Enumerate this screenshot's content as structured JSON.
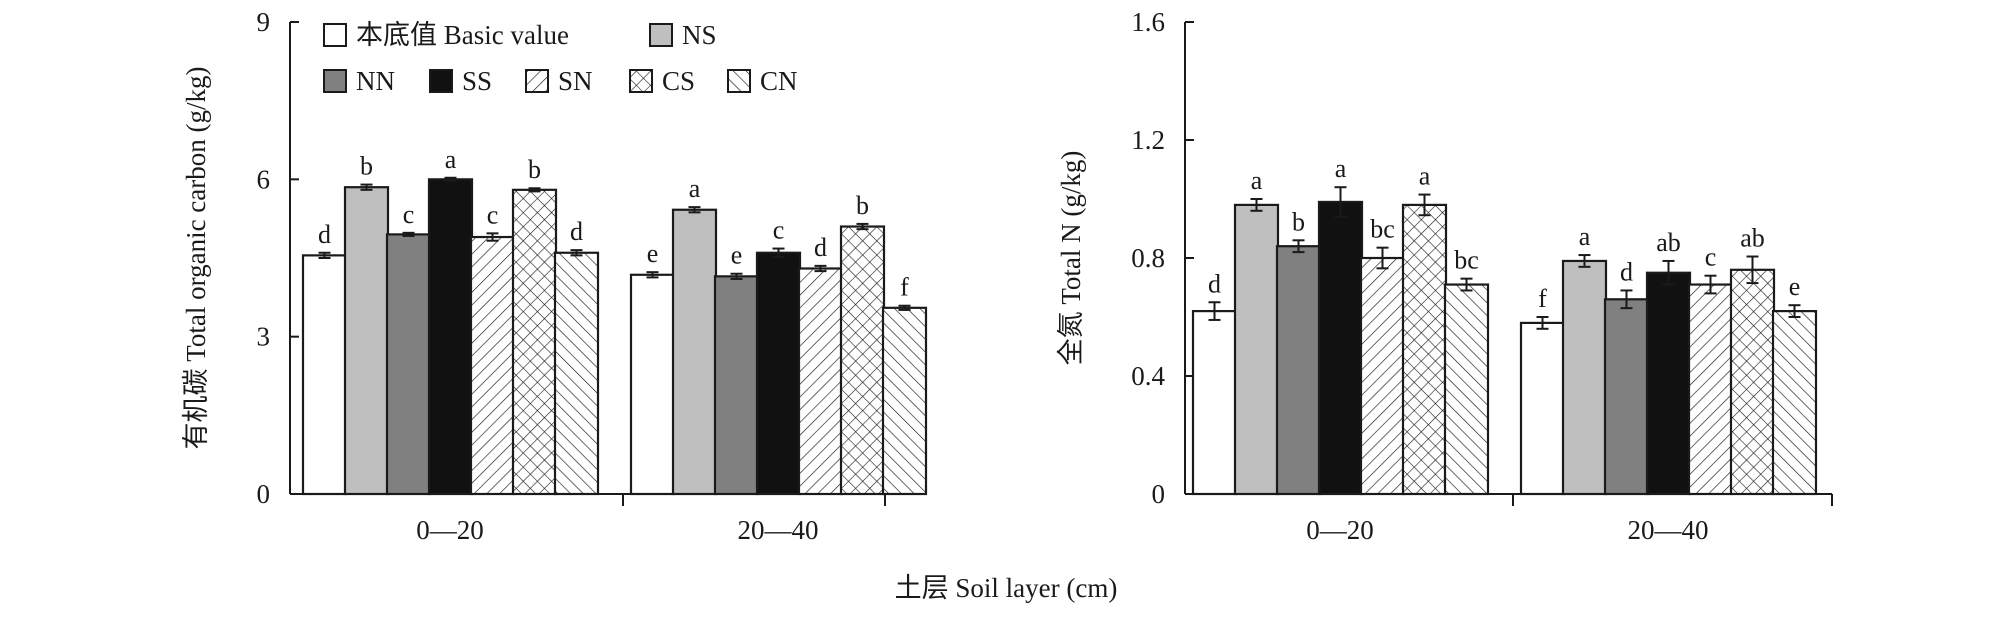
{
  "figure": {
    "xlabel": "土层 Soil layer (cm)"
  },
  "colors": {
    "frame": "#1a1a1a",
    "basic": "#ffffff",
    "NS": "#bfbfbf",
    "NN": "#808080",
    "SS": "#111111"
  },
  "legend": {
    "items": [
      {
        "key": "basic",
        "label": "本底值 Basic value",
        "fill": "white"
      },
      {
        "key": "NS",
        "label": "NS",
        "fill": "lightgray"
      },
      {
        "key": "NN",
        "label": "NN",
        "fill": "gray"
      },
      {
        "key": "SS",
        "label": "SS",
        "fill": "black"
      },
      {
        "key": "SN",
        "label": "SN",
        "fill": "diagonal-right"
      },
      {
        "key": "CS",
        "label": "CS",
        "fill": "crosshatch"
      },
      {
        "key": "CN",
        "label": "CN",
        "fill": "diagonal-left"
      }
    ]
  },
  "chart_data": [
    {
      "type": "bar",
      "ylabel": "有机碳 Total organic carbon (g/kg)",
      "ylim": [
        0,
        9
      ],
      "yticks": [
        "0",
        "3",
        "6",
        "9"
      ],
      "categories": [
        "0—20",
        "20—40"
      ],
      "series": [
        {
          "name": "本底值 Basic value",
          "values": [
            4.55,
            4.18
          ],
          "errors": [
            0.05,
            0.05
          ],
          "letters": [
            "d",
            "e"
          ]
        },
        {
          "name": "NS",
          "values": [
            5.85,
            5.42
          ],
          "errors": [
            0.05,
            0.05
          ],
          "letters": [
            "b",
            "a"
          ]
        },
        {
          "name": "NN",
          "values": [
            4.95,
            4.15
          ],
          "errors": [
            0.03,
            0.05
          ],
          "letters": [
            "c",
            "e"
          ]
        },
        {
          "name": "SS",
          "values": [
            6.0,
            4.6
          ],
          "errors": [
            0.03,
            0.08
          ],
          "letters": [
            "a",
            "c"
          ]
        },
        {
          "name": "SN",
          "values": [
            4.9,
            4.3
          ],
          "errors": [
            0.07,
            0.05
          ],
          "letters": [
            "c",
            "d"
          ]
        },
        {
          "name": "CS",
          "values": [
            5.8,
            5.1
          ],
          "errors": [
            0.03,
            0.05
          ],
          "letters": [
            "b",
            "b"
          ]
        },
        {
          "name": "CN",
          "values": [
            4.6,
            3.55
          ],
          "errors": [
            0.05,
            0.04
          ],
          "letters": [
            "d",
            "f"
          ]
        }
      ]
    },
    {
      "type": "bar",
      "ylabel": "全氮 Total N (g/kg)",
      "ylim": [
        0,
        1.6
      ],
      "yticks": [
        "0",
        "0.4",
        "0.8",
        "1.2",
        "1.6"
      ],
      "categories": [
        "0—20",
        "20—40"
      ],
      "series": [
        {
          "name": "本底值 Basic value",
          "values": [
            0.62,
            0.58
          ],
          "errors": [
            0.03,
            0.02
          ],
          "letters": [
            "d",
            "f"
          ]
        },
        {
          "name": "NS",
          "values": [
            0.98,
            0.79
          ],
          "errors": [
            0.02,
            0.02
          ],
          "letters": [
            "a",
            "a"
          ]
        },
        {
          "name": "NN",
          "values": [
            0.84,
            0.66
          ],
          "errors": [
            0.02,
            0.03
          ],
          "letters": [
            "b",
            "d"
          ]
        },
        {
          "name": "SS",
          "values": [
            0.99,
            0.75
          ],
          "errors": [
            0.05,
            0.04
          ],
          "letters": [
            "a",
            "ab"
          ]
        },
        {
          "name": "SN",
          "values": [
            0.8,
            0.71
          ],
          "errors": [
            0.035,
            0.03
          ],
          "letters": [
            "bc",
            "c"
          ]
        },
        {
          "name": "CS",
          "values": [
            0.98,
            0.76
          ],
          "errors": [
            0.035,
            0.045
          ],
          "letters": [
            "a",
            "ab"
          ]
        },
        {
          "name": "CN",
          "values": [
            0.71,
            0.62
          ],
          "errors": [
            0.02,
            0.02
          ],
          "letters": [
            "bc",
            "e"
          ]
        }
      ]
    }
  ]
}
